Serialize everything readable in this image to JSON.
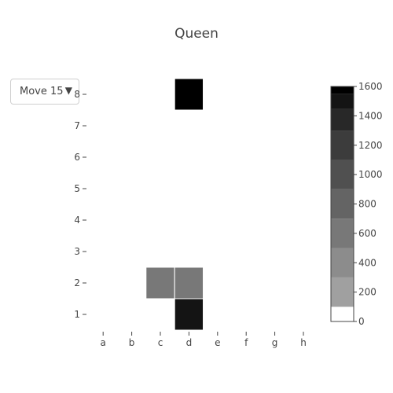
{
  "chart_data": {
    "type": "heatmap",
    "title": "Queen",
    "x_categories": [
      "a",
      "b",
      "c",
      "d",
      "e",
      "f",
      "g",
      "h"
    ],
    "y_categories": [
      "1",
      "2",
      "3",
      "4",
      "5",
      "6",
      "7",
      "8"
    ],
    "z": [
      [
        0,
        0,
        0,
        1450,
        0,
        0,
        0,
        0
      ],
      [
        0,
        0,
        560,
        560,
        0,
        0,
        0,
        0
      ],
      [
        0,
        0,
        0,
        0,
        0,
        0,
        0,
        0
      ],
      [
        0,
        0,
        0,
        0,
        0,
        0,
        0,
        0
      ],
      [
        0,
        0,
        0,
        0,
        0,
        0,
        0,
        0
      ],
      [
        0,
        0,
        0,
        0,
        0,
        0,
        0,
        0
      ],
      [
        0,
        0,
        0,
        0,
        0,
        0,
        0,
        0
      ],
      [
        0,
        0,
        0,
        1600,
        0,
        0,
        0,
        0
      ]
    ],
    "zmin": 0,
    "zmax": 1600,
    "colorbar_ticks": [
      0,
      200,
      400,
      600,
      800,
      1000,
      1200,
      1400,
      1600
    ],
    "colorscale": [
      "#ffffff",
      "#a0a0a0",
      "#8c8c8c",
      "#787878",
      "#646464",
      "#505050",
      "#3c3c3c",
      "#282828",
      "#141414",
      "#000000"
    ],
    "colorscale_bounds": [
      0,
      100,
      300,
      500,
      700,
      900,
      1100,
      1300,
      1450,
      1550,
      1600
    ],
    "grid": false
  },
  "controls": {
    "dropdown_label": "Move 15",
    "dropdown_arrow": "▼"
  }
}
